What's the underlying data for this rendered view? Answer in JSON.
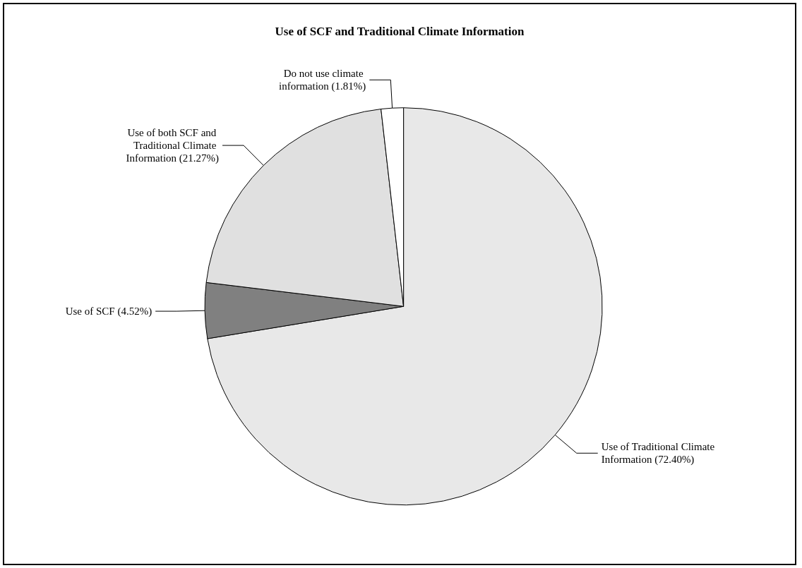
{
  "chart_data": {
    "type": "pie",
    "title": "Use of SCF and Traditional Climate Information",
    "categories": [
      "Use of Traditional Climate Information",
      "Use of SCF",
      "Use of both SCF and Traditional Climate Information",
      "Do not use climate information"
    ],
    "values": [
      72.4,
      4.52,
      21.27,
      1.81
    ],
    "value_labels": [
      "(72.40%)",
      "(4.52%)",
      "(21.27%)",
      "(1.81%)"
    ],
    "colors": [
      "#e8e8e8",
      "#808080",
      "#e0e0e0",
      "#ffffff"
    ],
    "legend": false
  }
}
